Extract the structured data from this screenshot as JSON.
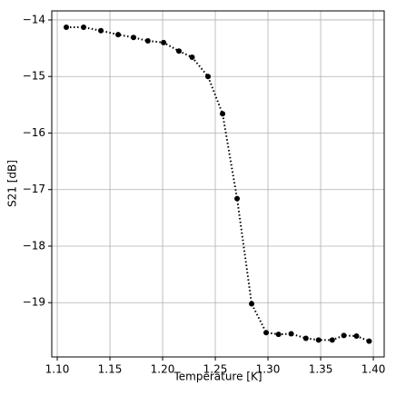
{
  "chart_data": {
    "type": "line",
    "xlabel": "Temperature [K]",
    "ylabel": "S21 [dB]",
    "series": [
      {
        "color": "#000000",
        "x": [
          1.1086,
          1.125,
          1.1414,
          1.1578,
          1.1724,
          1.186,
          1.2009,
          1.2155,
          1.228,
          1.2431,
          1.2569,
          1.2707,
          1.2845,
          1.2983,
          1.31,
          1.322,
          1.336,
          1.348,
          1.361,
          1.372,
          1.384,
          1.396
        ],
        "values": [
          -14.13,
          -14.13,
          -14.19,
          -14.26,
          -14.31,
          -14.37,
          -14.4,
          -14.55,
          -14.66,
          -15.0,
          -15.66,
          -17.16,
          -19.02,
          -19.53,
          -19.56,
          -19.55,
          -19.63,
          -19.66,
          -19.66,
          -19.58,
          -19.59,
          -19.68
        ]
      }
    ],
    "xlim": [
      1.0948,
      1.4103
    ],
    "ylim": [
      -19.96,
      -13.84
    ],
    "xticks": [
      {
        "value": 1.1,
        "label": "1.10"
      },
      {
        "value": 1.15,
        "label": "1.15"
      },
      {
        "value": 1.2,
        "label": "1.20"
      },
      {
        "value": 1.25,
        "label": "1.25"
      },
      {
        "value": 1.3,
        "label": "1.30"
      },
      {
        "value": 1.35,
        "label": "1.35"
      },
      {
        "value": 1.4,
        "label": "1.40"
      }
    ],
    "yticks": [
      {
        "value": -14,
        "label": "−14"
      },
      {
        "value": -15,
        "label": "−15"
      },
      {
        "value": -16,
        "label": "−16"
      },
      {
        "value": -17,
        "label": "−17"
      },
      {
        "value": -18,
        "label": "−18"
      },
      {
        "value": -19,
        "label": "−19"
      }
    ],
    "grid": true
  }
}
